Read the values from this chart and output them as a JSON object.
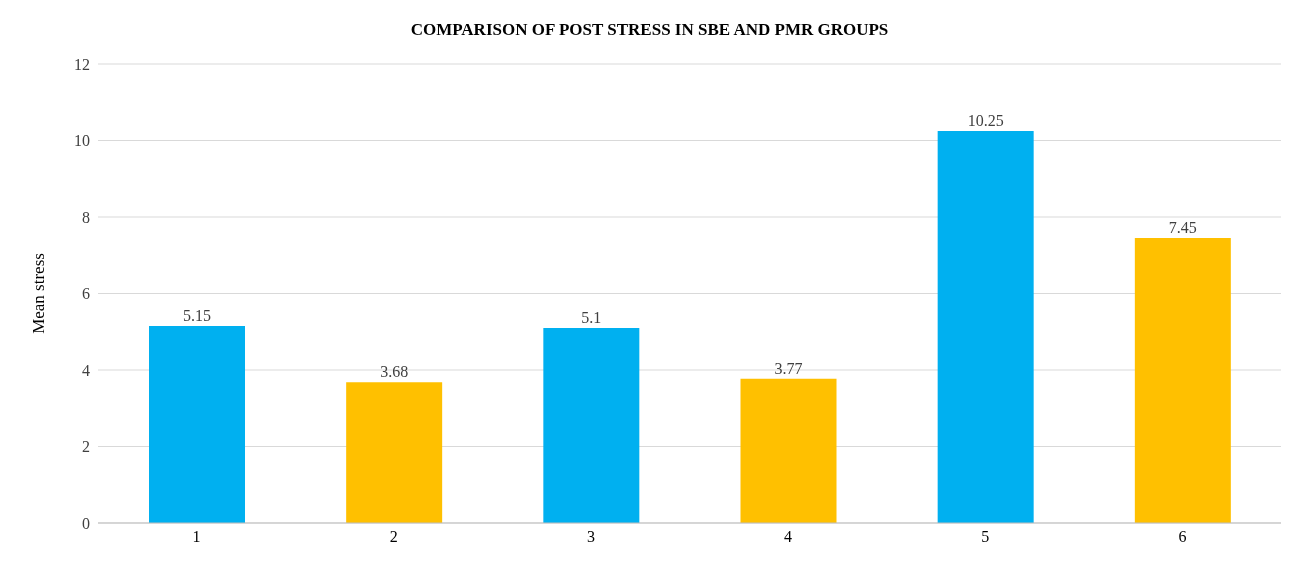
{
  "chart_data": {
    "type": "bar",
    "title": "COMPARISON OF POST STRESS IN SBE AND PMR GROUPS",
    "ylabel": "Mean stress",
    "categories": [
      "1",
      "2",
      "3",
      "4",
      "5",
      "6"
    ],
    "values": [
      5.15,
      3.68,
      5.1,
      3.77,
      10.25,
      7.45
    ],
    "colors": [
      "#00b0f0",
      "#ffc000",
      "#00b0f0",
      "#ffc000",
      "#00b0f0",
      "#ffc000"
    ],
    "ylim": [
      0,
      12
    ],
    "yticks": [
      0,
      2,
      4,
      6,
      8,
      10,
      12
    ],
    "grid": "y",
    "data_labels": true
  }
}
